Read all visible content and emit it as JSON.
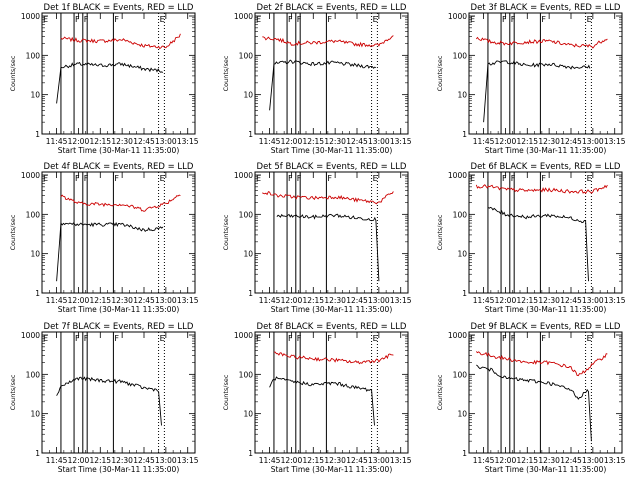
{
  "chart_data": [
    {
      "type": "line",
      "title": "Det 1f BLACK = Events, RED = LLD",
      "xlabel": "Start Time (30-Mar-11 11:35:00)",
      "ylabel": "Counts/sec",
      "x_ticks": [
        "11:45",
        "12:00",
        "12:15",
        "12:30",
        "12:45",
        "13:00",
        "13:15"
      ],
      "y_ticks": [
        "1",
        "10",
        "100",
        "1000"
      ],
      "y_scale": "log",
      "ylim": [
        1,
        1000
      ],
      "x_range": [
        "11:35",
        "13:20"
      ],
      "x_sample": [
        "11:45",
        "12:00",
        "12:15",
        "12:30",
        "12:45",
        "13:00",
        "13:10"
      ],
      "series": [
        {
          "name": "RED = LLD",
          "color": "#cc0000",
          "x": [
            "11:48",
            "12:00",
            "12:15",
            "12:30",
            "12:45",
            "13:00",
            "13:10"
          ],
          "values": [
            270,
            240,
            230,
            250,
            175,
            160,
            330
          ]
        },
        {
          "name": "BLACK = Events",
          "color": "#000000",
          "x": [
            "11:45",
            "11:48",
            "12:00",
            "12:15",
            "12:30",
            "12:45",
            "12:58"
          ],
          "values": [
            6,
            50,
            60,
            55,
            60,
            45,
            40
          ]
        }
      ],
      "vlines": [
        "11:48",
        "11:57",
        "12:03",
        "12:06",
        "12:24"
      ],
      "dotted_vlines": [
        "12:55",
        "12:59"
      ],
      "flags": [
        "E",
        "F",
        "F",
        "F",
        "E"
      ]
    },
    {
      "type": "line",
      "title": "Det 2f BLACK = Events, RED = LLD",
      "xlabel": "Start Time (30-Mar-11 11:35:00)",
      "ylabel": "Counts/sec",
      "x_ticks": [
        "11:45",
        "12:00",
        "12:15",
        "12:30",
        "12:45",
        "13:00",
        "13:15"
      ],
      "y_ticks": [
        "1",
        "10",
        "100",
        "1000"
      ],
      "y_scale": "log",
      "ylim": [
        1,
        1000
      ],
      "x_range": [
        "11:35",
        "13:20"
      ],
      "series": [
        {
          "name": "RED = LLD",
          "color": "#cc0000",
          "x": [
            "11:40",
            "11:50",
            "12:00",
            "12:15",
            "12:30",
            "12:45",
            "13:00",
            "13:10"
          ],
          "values": [
            280,
            260,
            200,
            210,
            230,
            190,
            180,
            330
          ]
        },
        {
          "name": "BLACK = Events",
          "color": "#000000",
          "x": [
            "11:45",
            "11:48",
            "12:00",
            "12:15",
            "12:30",
            "12:45",
            "12:58"
          ],
          "values": [
            4,
            60,
            70,
            60,
            65,
            55,
            50
          ]
        }
      ],
      "vlines": [
        "11:48",
        "11:57",
        "12:03",
        "12:06",
        "12:24"
      ],
      "dotted_vlines": [
        "12:55",
        "12:59"
      ],
      "flags": [
        "E",
        "F",
        "F",
        "F",
        "E"
      ]
    },
    {
      "type": "line",
      "title": "Det 3f BLACK = Events, RED = LLD",
      "xlabel": "Start Time (30-Mar-11 11:35:00)",
      "ylabel": "Counts/sec",
      "x_ticks": [
        "11:45",
        "12:00",
        "12:15",
        "12:30",
        "12:45",
        "13:00",
        "13:15"
      ],
      "y_ticks": [
        "1",
        "10",
        "100",
        "1000"
      ],
      "y_scale": "log",
      "ylim": [
        1,
        1000
      ],
      "x_range": [
        "11:35",
        "13:20"
      ],
      "series": [
        {
          "name": "RED = LLD",
          "color": "#cc0000",
          "x": [
            "11:40",
            "11:50",
            "12:00",
            "12:15",
            "12:30",
            "12:45",
            "13:00",
            "13:10"
          ],
          "values": [
            280,
            220,
            200,
            220,
            230,
            180,
            170,
            280
          ]
        },
        {
          "name": "BLACK = Events",
          "color": "#000000",
          "x": [
            "11:45",
            "11:48",
            "12:00",
            "12:15",
            "12:30",
            "12:45",
            "12:58"
          ],
          "values": [
            2,
            60,
            70,
            55,
            60,
            50,
            50
          ]
        }
      ],
      "vlines": [
        "11:48",
        "11:57",
        "12:03",
        "12:06",
        "12:24"
      ],
      "dotted_vlines": [
        "12:55",
        "12:59"
      ],
      "flags": [
        "E",
        "F",
        "F",
        "F",
        "E"
      ]
    },
    {
      "type": "line",
      "title": "Det 4f BLACK = Events, RED = LLD",
      "xlabel": "Start Time (30-Mar-11 11:35:00)",
      "ylabel": "Counts/sec",
      "x_ticks": [
        "11:45",
        "12:00",
        "12:15",
        "12:30",
        "12:45",
        "13:00",
        "13:15"
      ],
      "y_ticks": [
        "1",
        "10",
        "100",
        "1000"
      ],
      "y_scale": "log",
      "ylim": [
        1,
        1000
      ],
      "x_range": [
        "11:35",
        "13:20"
      ],
      "series": [
        {
          "name": "RED = LLD",
          "color": "#cc0000",
          "x": [
            "11:48",
            "12:00",
            "12:15",
            "12:30",
            "12:45",
            "13:00",
            "13:10"
          ],
          "values": [
            300,
            190,
            180,
            180,
            130,
            190,
            330
          ]
        },
        {
          "name": "BLACK = Events",
          "color": "#000000",
          "x": [
            "11:45",
            "11:48",
            "12:00",
            "12:15",
            "12:30",
            "12:45",
            "12:58"
          ],
          "values": [
            2,
            60,
            55,
            55,
            55,
            40,
            45
          ]
        }
      ],
      "vlines": [
        "11:48",
        "11:57",
        "12:03",
        "12:06",
        "12:24"
      ],
      "dotted_vlines": [
        "12:55",
        "12:59"
      ],
      "flags": [
        "E",
        "F",
        "F",
        "F",
        "E"
      ]
    },
    {
      "type": "line",
      "title": "Det 5f BLACK = Events, RED = LLD",
      "xlabel": "Start Time (30-Mar-11 11:35:00)",
      "ylabel": "Counts/sec",
      "x_ticks": [
        "11:45",
        "12:00",
        "12:15",
        "12:30",
        "12:45",
        "13:00",
        "13:15"
      ],
      "y_ticks": [
        "1",
        "10",
        "100",
        "1000"
      ],
      "y_scale": "log",
      "ylim": [
        1,
        1000
      ],
      "x_range": [
        "11:35",
        "13:20"
      ],
      "series": [
        {
          "name": "RED = LLD",
          "color": "#cc0000",
          "x": [
            "11:40",
            "11:50",
            "12:00",
            "12:15",
            "12:30",
            "12:45",
            "13:00",
            "13:10"
          ],
          "values": [
            380,
            300,
            280,
            260,
            280,
            230,
            200,
            380
          ]
        },
        {
          "name": "BLACK = Events",
          "color": "#000000",
          "x": [
            "11:50",
            "12:00",
            "12:15",
            "12:30",
            "12:45",
            "12:58",
            "13:00"
          ],
          "values": [
            90,
            90,
            85,
            95,
            80,
            75,
            2
          ]
        }
      ],
      "vlines": [
        "11:48",
        "11:57",
        "12:03",
        "12:06",
        "12:24"
      ],
      "dotted_vlines": [
        "12:55",
        "12:59"
      ],
      "flags": [
        "E",
        "F",
        "F",
        "F",
        "E"
      ]
    },
    {
      "type": "line",
      "title": "Det 6f BLACK = Events, RED = LLD",
      "xlabel": "Start Time (30-Mar-11 11:35:00)",
      "ylabel": "Counts/sec",
      "x_ticks": [
        "11:45",
        "12:00",
        "12:15",
        "12:30",
        "12:45",
        "13:00",
        "13:15"
      ],
      "y_ticks": [
        "1",
        "10",
        "100",
        "1000"
      ],
      "y_scale": "log",
      "ylim": [
        1,
        1000
      ],
      "x_range": [
        "11:35",
        "13:20"
      ],
      "series": [
        {
          "name": "RED = LLD",
          "color": "#cc0000",
          "x": [
            "11:40",
            "11:50",
            "12:00",
            "12:15",
            "12:30",
            "12:45",
            "13:00",
            "13:10"
          ],
          "values": [
            520,
            500,
            430,
            400,
            420,
            380,
            380,
            550
          ]
        },
        {
          "name": "BLACK = Events",
          "color": "#000000",
          "x": [
            "11:48",
            "12:00",
            "12:15",
            "12:30",
            "12:45",
            "12:55",
            "12:57"
          ],
          "values": [
            150,
            100,
            85,
            95,
            80,
            65,
            2
          ]
        }
      ],
      "vlines": [
        "11:48",
        "11:57",
        "12:03",
        "12:06",
        "12:24"
      ],
      "dotted_vlines": [
        "12:55",
        "12:59"
      ],
      "flags": [
        "E",
        "F",
        "F",
        "F",
        "E"
      ]
    },
    {
      "type": "line",
      "title": "Det 7f BLACK = Events, RED = LLD",
      "xlabel": "Start Time (30-Mar-11 11:35:00)",
      "ylabel": "Counts/sec",
      "x_ticks": [
        "11:45",
        "12:00",
        "12:15",
        "12:30",
        "12:45",
        "13:00",
        "13:15"
      ],
      "y_ticks": [
        "1",
        "10",
        "100",
        "1000"
      ],
      "y_scale": "log",
      "ylim": [
        1,
        1000
      ],
      "x_range": [
        "11:35",
        "13:20"
      ],
      "series": [
        {
          "name": "BLACK = Events",
          "color": "#000000",
          "x": [
            "11:45",
            "11:48",
            "12:00",
            "12:15",
            "12:30",
            "12:45",
            "12:55",
            "12:57"
          ],
          "values": [
            30,
            50,
            80,
            70,
            65,
            45,
            40,
            5
          ]
        }
      ],
      "vlines": [
        "11:48",
        "11:57",
        "12:03",
        "12:06",
        "12:24"
      ],
      "dotted_vlines": [
        "12:55",
        "12:59"
      ],
      "flags": [
        "E",
        "F",
        "F",
        "F",
        "E"
      ]
    },
    {
      "type": "line",
      "title": "Det 8f BLACK = Events, RED = LLD",
      "xlabel": "Start Time (30-Mar-11 11:35:00)",
      "ylabel": "Counts/sec",
      "x_ticks": [
        "11:45",
        "12:00",
        "12:15",
        "12:30",
        "12:45",
        "13:00",
        "13:15"
      ],
      "y_ticks": [
        "1",
        "10",
        "100",
        "1000"
      ],
      "y_scale": "log",
      "ylim": [
        1,
        1000
      ],
      "x_range": [
        "11:35",
        "13:20"
      ],
      "series": [
        {
          "name": "RED = LLD",
          "color": "#cc0000",
          "x": [
            "11:48",
            "12:00",
            "12:15",
            "12:30",
            "12:45",
            "13:00",
            "13:10"
          ],
          "values": [
            350,
            280,
            250,
            230,
            200,
            230,
            330
          ]
        },
        {
          "name": "BLACK = Events",
          "color": "#000000",
          "x": [
            "11:45",
            "11:48",
            "12:00",
            "12:15",
            "12:30",
            "12:45",
            "12:55",
            "12:57"
          ],
          "values": [
            45,
            80,
            65,
            55,
            60,
            45,
            40,
            5
          ]
        }
      ],
      "vlines": [
        "11:48",
        "11:57",
        "12:03",
        "12:06",
        "12:24"
      ],
      "dotted_vlines": [
        "12:55",
        "12:59"
      ],
      "flags": [
        "E",
        "F",
        "F",
        "F",
        "E"
      ]
    },
    {
      "type": "line",
      "title": "Det 9f BLACK = Events, RED = LLD",
      "xlabel": "Start Time (30-Mar-11 11:35:00)",
      "ylabel": "Counts/sec",
      "x_ticks": [
        "11:45",
        "12:00",
        "12:15",
        "12:30",
        "12:45",
        "13:00",
        "13:15"
      ],
      "y_ticks": [
        "1",
        "10",
        "100",
        "1000"
      ],
      "y_scale": "log",
      "ylim": [
        1,
        1000
      ],
      "x_range": [
        "11:35",
        "13:20"
      ],
      "series": [
        {
          "name": "RED = LLD",
          "color": "#cc0000",
          "x": [
            "11:40",
            "11:50",
            "12:00",
            "12:15",
            "12:30",
            "12:45",
            "12:50",
            "13:00",
            "13:10"
          ],
          "values": [
            370,
            300,
            250,
            200,
            200,
            150,
            90,
            180,
            330
          ]
        },
        {
          "name": "BLACK = Events",
          "color": "#000000",
          "x": [
            "11:40",
            "11:50",
            "12:00",
            "12:15",
            "12:30",
            "12:45",
            "12:50",
            "12:57",
            "12:59"
          ],
          "values": [
            160,
            130,
            80,
            70,
            60,
            40,
            25,
            40,
            2
          ]
        }
      ],
      "vlines": [
        "11:48",
        "11:57",
        "12:03",
        "12:06",
        "12:24"
      ],
      "dotted_vlines": [
        "12:55",
        "12:59"
      ],
      "flags": [
        "E",
        "F",
        "F",
        "F",
        "E"
      ]
    }
  ]
}
